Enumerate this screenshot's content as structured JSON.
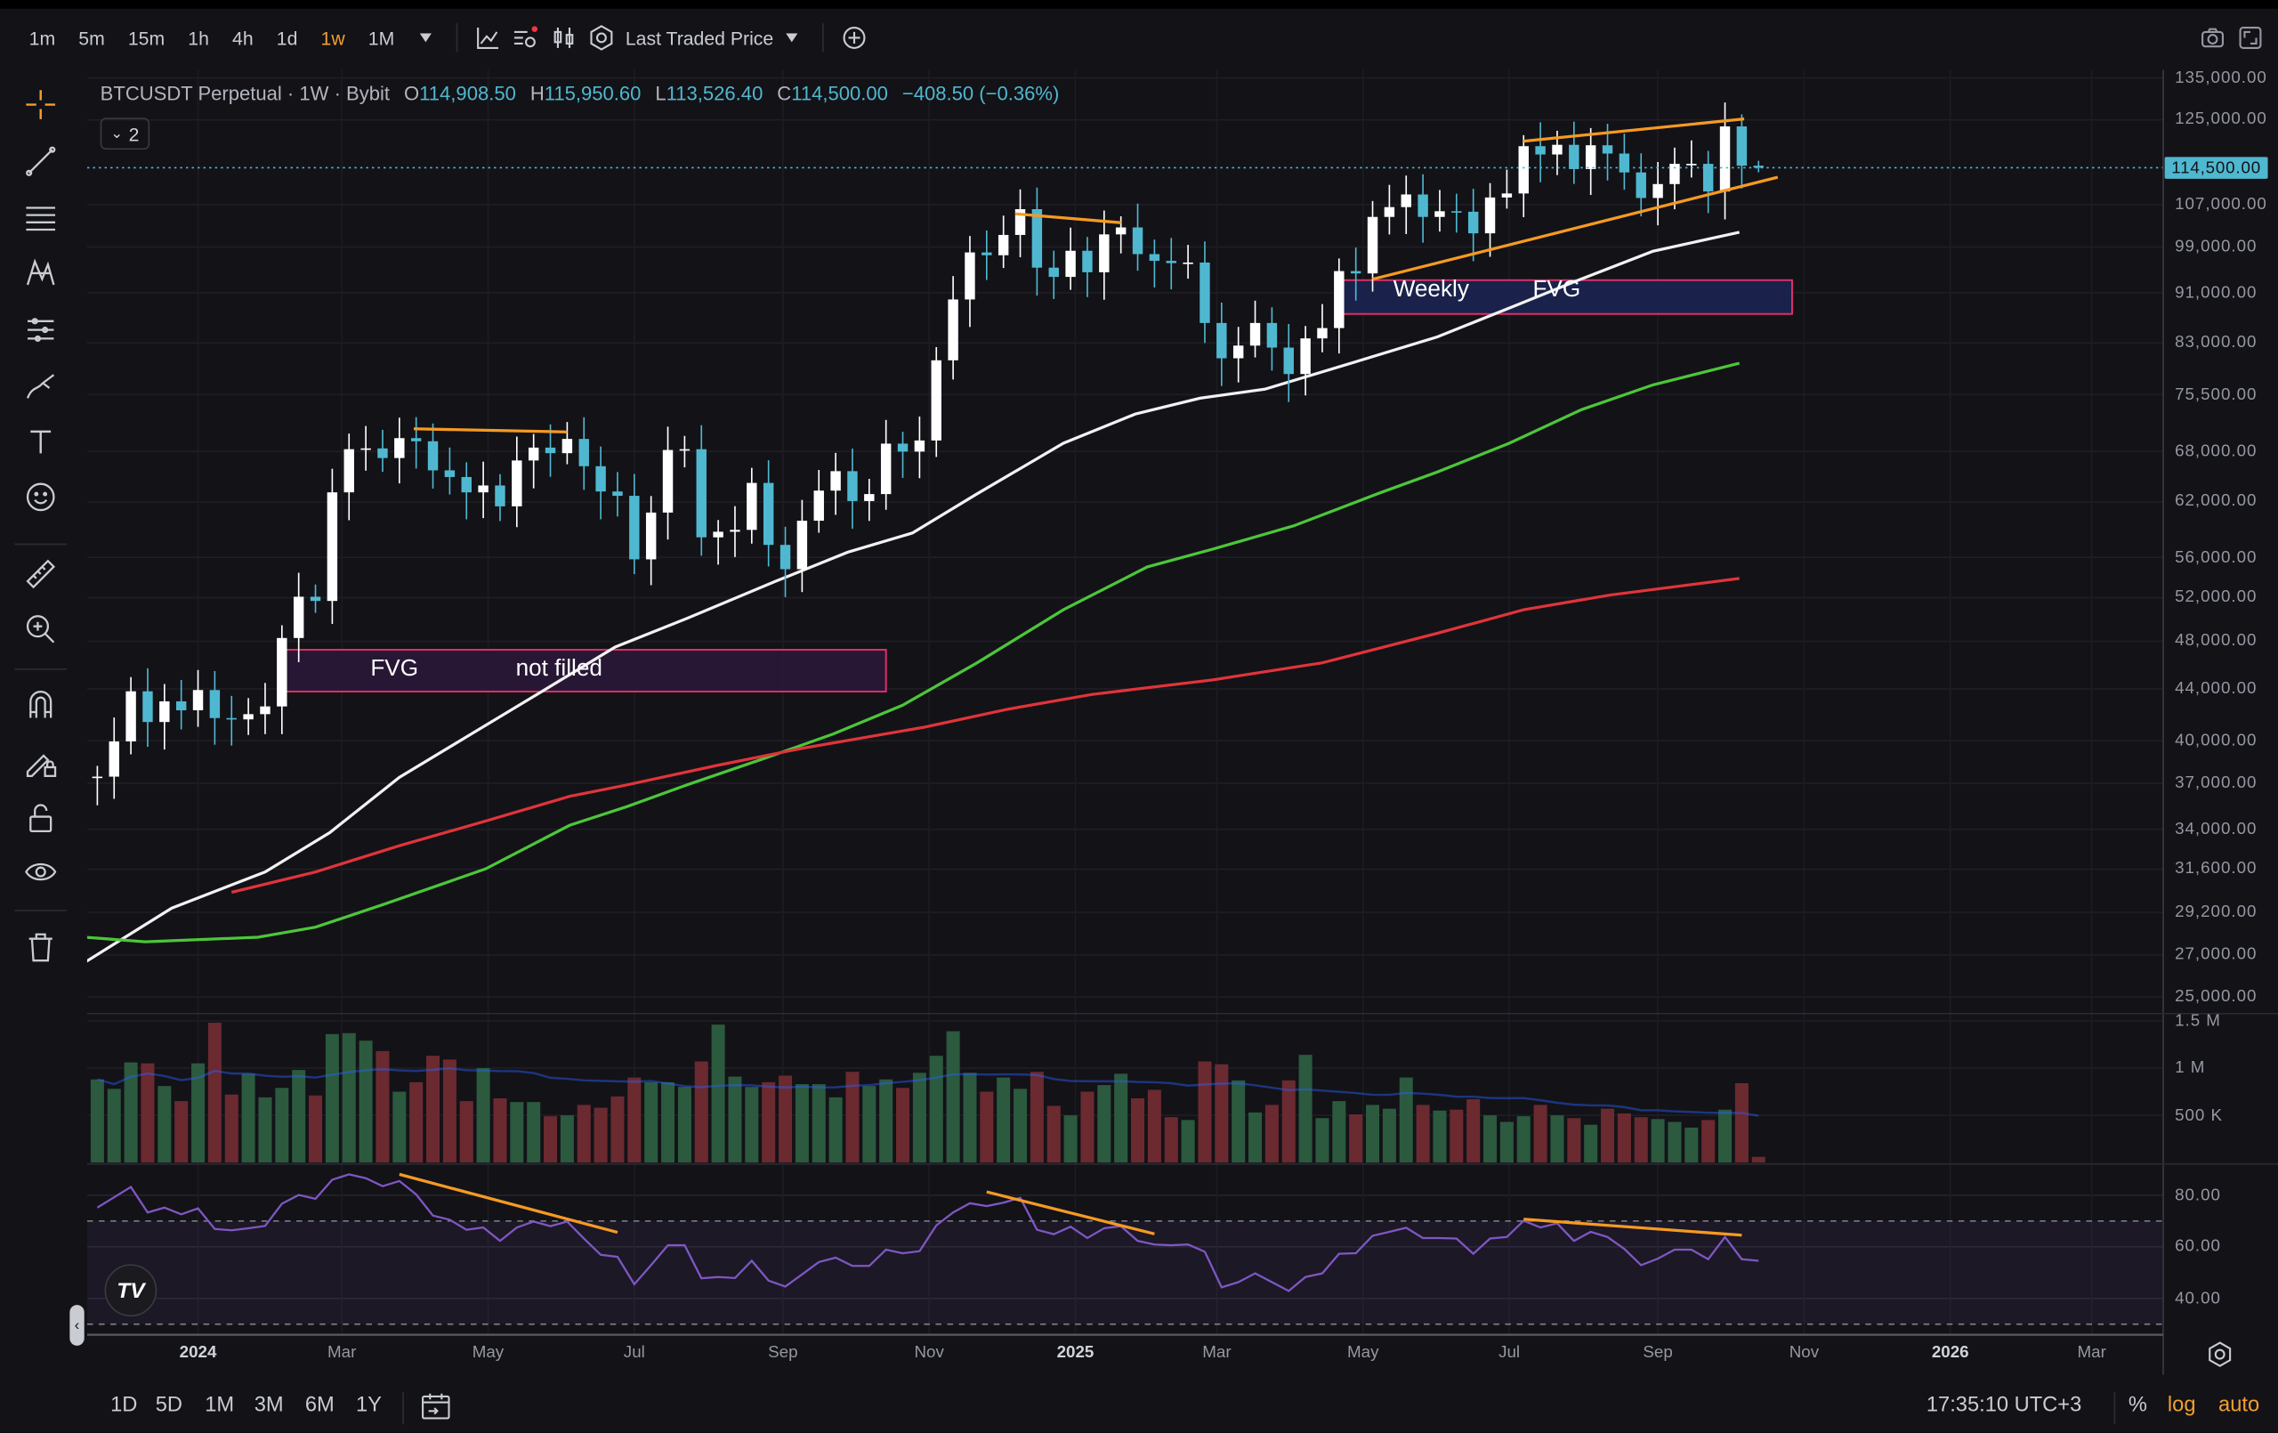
{
  "toolbar": {
    "timeframes": [
      "1m",
      "5m",
      "15m",
      "1h",
      "4h",
      "1d",
      "1w",
      "1M"
    ],
    "active_timeframe": "1w",
    "price_source": "Last Traded Price",
    "icons": [
      "line-chart-icon",
      "indicators-icon",
      "candles-icon",
      "settings-hex-icon",
      "add-circle-icon",
      "camera-icon",
      "fullscreen-icon"
    ]
  },
  "legend": {
    "symbol": "BTCUSDT Perpetual · 1W · Bybit",
    "o_label": "O",
    "o": "114,908.50",
    "h_label": "H",
    "h": "115,950.60",
    "l_label": "L",
    "l": "113,526.40",
    "c_label": "C",
    "c": "114,500.00",
    "change": "−408.50 (−0.36%)",
    "collapsed_count": "2"
  },
  "current_price_label": "114,500.00",
  "colors": {
    "up": "#ffffff",
    "down": "#4fb8d0",
    "vol_up": "#2b5a3e",
    "vol_down": "#6b2a30",
    "ma_white": "#f2f2f2",
    "ma_green": "#4cc63a",
    "ma_red": "#e0343a",
    "rsi": "#7e57c2",
    "trend": "#f59a23",
    "fvg_border": "#e0306a",
    "accent": "#f0a030"
  },
  "annotations": {
    "fvg1": {
      "label_a": "FVG",
      "label_b": "not filled",
      "t1": "2024-02-05",
      "t2": "2024-10-14",
      "p_top": 47270,
      "p_bottom": 43780,
      "fill": "#2a1838"
    },
    "fvg2": {
      "label_a": "Weekly",
      "label_b": "FVG",
      "t1": "2025-04-21",
      "t2": "2025-10-27",
      "p_top": 93140,
      "p_bottom": 87540,
      "fill": "#1c2350"
    },
    "price_trendlines": [
      {
        "t1": "2024-03-31",
        "p1": 70900,
        "t2": "2024-06-03",
        "p2": 70500
      },
      {
        "t1": "2024-12-07",
        "p1": 105200,
        "t2": "2025-01-20",
        "p2": 103500
      },
      {
        "t1": "2025-07-07",
        "p1": 120200,
        "t2": "2025-10-07",
        "p2": 125200
      },
      {
        "t1": "2025-05-05",
        "p1": 93300,
        "t2": "2025-10-21",
        "p2": 112500
      }
    ],
    "rsi_trendlines": [
      {
        "t1": "2024-03-25",
        "v1": 88.1,
        "t2": "2024-06-24",
        "v2": 65.6
      },
      {
        "t1": "2024-11-25",
        "v1": 81.3,
        "t2": "2025-02-03",
        "v2": 65
      },
      {
        "t1": "2025-07-07",
        "v1": 70.7,
        "t2": "2025-10-06",
        "v2": 64.5
      }
    ]
  },
  "chart_data": {
    "type": "candlestick",
    "scale": "log",
    "ylim": [
      25000,
      135000
    ],
    "first_bar": "2023-11-20",
    "interval": "1W",
    "first_open": 37400,
    "closes": [
      37450,
      39950,
      43800,
      41400,
      43000,
      42300,
      43900,
      41700,
      41600,
      42000,
      42600,
      48300,
      52100,
      51700,
      63100,
      68300,
      68400,
      67200,
      69700,
      69300,
      65700,
      64900,
      63100,
      63900,
      61500,
      66900,
      68500,
      67800,
      69600,
      66200,
      63200,
      62700,
      55800,
      60800,
      68200,
      68300,
      58100,
      58700,
      58900,
      64200,
      57300,
      54800,
      59900,
      63300,
      65600,
      62100,
      62900,
      69000,
      68000,
      69400,
      80400,
      89900,
      98000,
      97500,
      101200,
      106100,
      95300,
      93700,
      98300,
      94500,
      101300,
      102600,
      97700,
      96500,
      96100,
      96200,
      86100,
      80700,
      82600,
      86100,
      82300,
      78400,
      83700,
      85300,
      94700,
      94300,
      104600,
      106500,
      109000,
      104600,
      105700,
      105600,
      101500,
      108400,
      109200,
      119100,
      117300,
      119400,
      114200,
      119300,
      117500,
      113500,
      108300,
      111100,
      115300,
      115300,
      109600,
      123500,
      114908.5,
      114500
    ],
    "last_bar": {
      "o": 114908.5,
      "h": 115950.6,
      "l": 113526.4,
      "c": 114500
    },
    "volume_millions": [
      0.88,
      0.78,
      1.06,
      1.05,
      0.81,
      0.65,
      1.05,
      1.48,
      0.72,
      0.94,
      0.69,
      0.79,
      0.98,
      0.71,
      1.36,
      1.37,
      1.29,
      1.18,
      0.75,
      0.85,
      1.13,
      1.09,
      0.65,
      1.0,
      0.68,
      0.64,
      0.64,
      0.49,
      0.5,
      0.61,
      0.58,
      0.7,
      0.9,
      0.85,
      0.85,
      0.8,
      1.07,
      1.46,
      0.91,
      0.8,
      0.85,
      0.92,
      0.83,
      0.83,
      0.69,
      0.96,
      0.81,
      0.88,
      0.79,
      0.95,
      1.13,
      1.39,
      0.95,
      0.75,
      0.9,
      0.78,
      0.96,
      0.6,
      0.5,
      0.75,
      0.82,
      0.94,
      0.68,
      0.77,
      0.48,
      0.45,
      1.07,
      1.04,
      0.87,
      0.53,
      0.61,
      0.87,
      1.14,
      0.47,
      0.65,
      0.51,
      0.61,
      0.57,
      0.9,
      0.61,
      0.55,
      0.56,
      0.67,
      0.5,
      0.43,
      0.49,
      0.61,
      0.5,
      0.47,
      0.4,
      0.57,
      0.52,
      0.48,
      0.46,
      0.43,
      0.37,
      0.45,
      0.56,
      0.84,
      0.06
    ],
    "rsi": [
      75.2,
      79.2,
      83.2,
      73.3,
      75.2,
      72.6,
      74.9,
      66.9,
      66.4,
      67.2,
      68.1,
      76.7,
      80.1,
      78.6,
      86,
      88.1,
      86.6,
      83.5,
      85.5,
      80.3,
      72.1,
      70.5,
      66.6,
      67.5,
      62.3,
      67.5,
      69.8,
      68,
      69.8,
      63.2,
      56.9,
      56.1,
      45.5,
      52.9,
      60.6,
      60.6,
      47.8,
      48.3,
      47.9,
      54.6,
      46.9,
      44.6,
      49.3,
      54.1,
      55.8,
      52.6,
      52.6,
      58.9,
      57.5,
      58.3,
      68.3,
      73.3,
      76.9,
      75.8,
      77.1,
      79,
      66.6,
      64.9,
      67.8,
      63.4,
      67.2,
      68,
      62.3,
      60.9,
      60.6,
      60.9,
      58.1,
      44.3,
      46.3,
      49.7,
      46.3,
      42.9,
      48.3,
      49.7,
      57.3,
      57.5,
      64.3,
      65.8,
      67.4,
      63.4,
      63.4,
      63.2,
      57.3,
      63.2,
      63.8,
      70.1,
      67.5,
      69.1,
      62.3,
      65.8,
      63.8,
      59.2,
      52.9,
      55.4,
      58.9,
      58.9,
      55.2,
      63.8,
      55.2,
      54.6
    ],
    "rsi_levels": {
      "upper": 70,
      "lower": 30
    },
    "moving_averages": [
      {
        "color": "#f2f2f2",
        "points": [
          [
            "2023-11-15",
            26650
          ],
          [
            "2023-12-21",
            29420
          ],
          [
            "2024-01-29",
            31440
          ],
          [
            "2024-02-25",
            33800
          ],
          [
            "2024-03-25",
            37400
          ],
          [
            "2024-04-24",
            40500
          ],
          [
            "2024-05-24",
            43850
          ],
          [
            "2024-06-23",
            47500
          ],
          [
            "2024-07-23",
            50070
          ],
          [
            "2024-08-29",
            53600
          ],
          [
            "2024-09-28",
            56530
          ],
          [
            "2024-10-25",
            58560
          ],
          [
            "2024-11-21",
            62930
          ],
          [
            "2024-12-27",
            69050
          ],
          [
            "2025-01-26",
            72850
          ],
          [
            "2025-02-22",
            75000
          ],
          [
            "2025-03-21",
            76250
          ],
          [
            "2025-04-26",
            79970
          ],
          [
            "2025-06-01",
            83930
          ],
          [
            "2025-07-01",
            88490
          ],
          [
            "2025-07-31",
            93330
          ],
          [
            "2025-08-30",
            98220
          ],
          [
            "2025-10-05",
            101700
          ]
        ]
      },
      {
        "color": "#4cc63a",
        "points": [
          [
            "2023-11-15",
            27890
          ],
          [
            "2023-12-10",
            27660
          ],
          [
            "2024-01-26",
            27890
          ],
          [
            "2024-02-19",
            28410
          ],
          [
            "2024-03-19",
            29650
          ],
          [
            "2024-04-30",
            31620
          ],
          [
            "2024-06-04",
            34250
          ],
          [
            "2024-06-28",
            35450
          ],
          [
            "2024-07-23",
            36890
          ],
          [
            "2024-08-24",
            38710
          ],
          [
            "2024-09-22",
            40500
          ],
          [
            "2024-10-21",
            42700
          ],
          [
            "2024-11-21",
            46150
          ],
          [
            "2024-12-27",
            50870
          ],
          [
            "2025-01-31",
            55030
          ],
          [
            "2025-02-27",
            56830
          ],
          [
            "2025-04-02",
            59330
          ],
          [
            "2025-05-07",
            62930
          ],
          [
            "2025-06-01",
            65500
          ],
          [
            "2025-07-01",
            69050
          ],
          [
            "2025-07-31",
            73420
          ],
          [
            "2025-08-30",
            76860
          ],
          [
            "2025-10-05",
            79970
          ]
        ]
      },
      {
        "color": "#e0343a",
        "points": [
          [
            "2024-01-15",
            30290
          ],
          [
            "2024-02-19",
            31440
          ],
          [
            "2024-03-25",
            32990
          ],
          [
            "2024-04-30",
            34520
          ],
          [
            "2024-06-04",
            36120
          ],
          [
            "2024-06-28",
            36890
          ],
          [
            "2024-08-04",
            38210
          ],
          [
            "2024-09-09",
            39450
          ],
          [
            "2024-10-30",
            41010
          ],
          [
            "2024-12-04",
            42390
          ],
          [
            "2025-01-08",
            43550
          ],
          [
            "2025-02-27",
            44720
          ],
          [
            "2025-04-14",
            46150
          ],
          [
            "2025-06-01",
            48720
          ],
          [
            "2025-07-07",
            50870
          ],
          [
            "2025-08-12",
            52260
          ],
          [
            "2025-10-05",
            53880
          ]
        ]
      }
    ],
    "price_ticks": [
      {
        "value": 135000,
        "label": "135,000.00"
      },
      {
        "value": 125000,
        "label": "125,000.00"
      },
      {
        "value": 107000,
        "label": "107,000.00"
      },
      {
        "value": 99000,
        "label": "99,000.00"
      },
      {
        "value": 91000,
        "label": "91,000.00"
      },
      {
        "value": 83000,
        "label": "83,000.00"
      },
      {
        "value": 75500,
        "label": "75,500.00"
      },
      {
        "value": 68000,
        "label": "68,000.00"
      },
      {
        "value": 62000,
        "label": "62,000.00"
      },
      {
        "value": 56000,
        "label": "56,000.00"
      },
      {
        "value": 52000,
        "label": "52,000.00"
      },
      {
        "value": 48000,
        "label": "48,000.00"
      },
      {
        "value": 44000,
        "label": "44,000.00"
      },
      {
        "value": 40000,
        "label": "40,000.00"
      },
      {
        "value": 37000,
        "label": "37,000.00"
      },
      {
        "value": 34000,
        "label": "34,000.00"
      },
      {
        "value": 31600,
        "label": "31,600.00"
      },
      {
        "value": 29200,
        "label": "29,200.00"
      },
      {
        "value": 27000,
        "label": "27,000.00"
      },
      {
        "value": 25000,
        "label": "25,000.00"
      }
    ],
    "volume_ticks": [
      {
        "value": 1.5,
        "label": "1.5 M"
      },
      {
        "value": 1,
        "label": "1 M"
      },
      {
        "value": 0.5,
        "label": "500 K"
      }
    ],
    "rsi_ticks": [
      {
        "value": 80,
        "label": "80.00"
      },
      {
        "value": 60,
        "label": "60.00"
      },
      {
        "value": 40,
        "label": "40.00"
      }
    ],
    "time_ticks": [
      {
        "date": "2024-01-01",
        "label": "2024",
        "year": true
      },
      {
        "date": "2024-03-01",
        "label": "Mar"
      },
      {
        "date": "2024-05-01",
        "label": "May"
      },
      {
        "date": "2024-07-01",
        "label": "Jul"
      },
      {
        "date": "2024-09-01",
        "label": "Sep"
      },
      {
        "date": "2024-11-01",
        "label": "Nov"
      },
      {
        "date": "2025-01-01",
        "label": "2025",
        "year": true
      },
      {
        "date": "2025-03-01",
        "label": "Mar"
      },
      {
        "date": "2025-05-01",
        "label": "May"
      },
      {
        "date": "2025-07-01",
        "label": "Jul"
      },
      {
        "date": "2025-09-01",
        "label": "Sep"
      },
      {
        "date": "2025-11-01",
        "label": "Nov"
      },
      {
        "date": "2026-01-01",
        "label": "2026",
        "year": true
      },
      {
        "date": "2026-03-01",
        "label": "Mar"
      }
    ]
  },
  "bottom": {
    "ranges": [
      "1D",
      "5D",
      "1M",
      "3M",
      "6M",
      "1Y"
    ],
    "clock": "17:35:10 UTC+3",
    "percent": "%",
    "log": "log",
    "auto": "auto"
  },
  "logo": "TV"
}
